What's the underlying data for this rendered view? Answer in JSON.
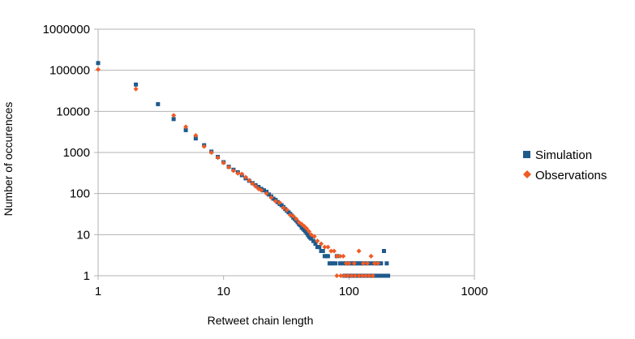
{
  "chart_data": {
    "type": "scatter",
    "xlabel": "Retweet chain length",
    "ylabel": "Number of occurences",
    "xscale": "log",
    "yscale": "log",
    "xlim": [
      1,
      1000
    ],
    "ylim": [
      1,
      1000000
    ],
    "x_ticks": [
      "1",
      "10",
      "100",
      "1000"
    ],
    "y_ticks": [
      "1",
      "10",
      "100",
      "1000",
      "10000",
      "100000",
      "1000000"
    ],
    "grid": "horizontal major",
    "legend_position": "right",
    "series": [
      {
        "name": "Simulation",
        "marker": "square",
        "color": "#1f5a8c",
        "points": [
          [
            1,
            150000
          ],
          [
            2,
            45000
          ],
          [
            3,
            15000
          ],
          [
            4,
            6500
          ],
          [
            5,
            3500
          ],
          [
            6,
            2200
          ],
          [
            7,
            1500
          ],
          [
            8,
            1050
          ],
          [
            9,
            780
          ],
          [
            10,
            580
          ],
          [
            11,
            450
          ],
          [
            12,
            380
          ],
          [
            13,
            330
          ],
          [
            14,
            280
          ],
          [
            15,
            235
          ],
          [
            16,
            205
          ],
          [
            17,
            180
          ],
          [
            18,
            160
          ],
          [
            19,
            145
          ],
          [
            20,
            130
          ],
          [
            21,
            120
          ],
          [
            22,
            110
          ],
          [
            23,
            95
          ],
          [
            24,
            85
          ],
          [
            25,
            75
          ],
          [
            26,
            70
          ],
          [
            27,
            62
          ],
          [
            28,
            56
          ],
          [
            29,
            52
          ],
          [
            30,
            47
          ],
          [
            31,
            42
          ],
          [
            32,
            38
          ],
          [
            33,
            35
          ],
          [
            34,
            32
          ],
          [
            35,
            29
          ],
          [
            36,
            26
          ],
          [
            37,
            24
          ],
          [
            38,
            22
          ],
          [
            39,
            20
          ],
          [
            40,
            18
          ],
          [
            41,
            17
          ],
          [
            42,
            15
          ],
          [
            43,
            14
          ],
          [
            44,
            13
          ],
          [
            45,
            12
          ],
          [
            46,
            11
          ],
          [
            47,
            10
          ],
          [
            48,
            9
          ],
          [
            49,
            8.5
          ],
          [
            50,
            8
          ],
          [
            52,
            7
          ],
          [
            54,
            6
          ],
          [
            56,
            5
          ],
          [
            58,
            5
          ],
          [
            60,
            4
          ],
          [
            62,
            4
          ],
          [
            64,
            3
          ],
          [
            66,
            3
          ],
          [
            68,
            3
          ],
          [
            70,
            2
          ],
          [
            72,
            2
          ],
          [
            75,
            2
          ],
          [
            78,
            2
          ],
          [
            80,
            3
          ],
          [
            85,
            2
          ],
          [
            90,
            2
          ],
          [
            95,
            2
          ],
          [
            100,
            2
          ],
          [
            105,
            2
          ],
          [
            110,
            2
          ],
          [
            115,
            2
          ],
          [
            120,
            2
          ],
          [
            125,
            2
          ],
          [
            130,
            2
          ],
          [
            140,
            2
          ],
          [
            150,
            2
          ],
          [
            160,
            2
          ],
          [
            170,
            2
          ],
          [
            180,
            2
          ],
          [
            190,
            4
          ],
          [
            200,
            2
          ],
          [
            92,
            1
          ],
          [
            96,
            1
          ],
          [
            100,
            1
          ],
          [
            104,
            1
          ],
          [
            108,
            1
          ],
          [
            112,
            1
          ],
          [
            116,
            1
          ],
          [
            120,
            1
          ],
          [
            124,
            1
          ],
          [
            128,
            1
          ],
          [
            132,
            1
          ],
          [
            136,
            1
          ],
          [
            140,
            1
          ],
          [
            145,
            1
          ],
          [
            150,
            1
          ],
          [
            155,
            1
          ],
          [
            160,
            1
          ],
          [
            165,
            1
          ],
          [
            170,
            1
          ],
          [
            175,
            1
          ],
          [
            180,
            1
          ],
          [
            185,
            1
          ],
          [
            190,
            1
          ],
          [
            195,
            1
          ],
          [
            200,
            1
          ],
          [
            205,
            1
          ]
        ]
      },
      {
        "name": "Observations",
        "marker": "diamond",
        "color": "#f05a24",
        "points": [
          [
            1,
            105000
          ],
          [
            2,
            35000
          ],
          [
            4,
            8000
          ],
          [
            5,
            4200
          ],
          [
            6,
            2600
          ],
          [
            7,
            1400
          ],
          [
            8,
            1000
          ],
          [
            9,
            750
          ],
          [
            10,
            560
          ],
          [
            11,
            440
          ],
          [
            12,
            360
          ],
          [
            13,
            310
          ],
          [
            14,
            300
          ],
          [
            15,
            250
          ],
          [
            16,
            210
          ],
          [
            17,
            175
          ],
          [
            18,
            150
          ],
          [
            19,
            130
          ],
          [
            20,
            120
          ],
          [
            22,
            100
          ],
          [
            24,
            80
          ],
          [
            26,
            65
          ],
          [
            28,
            60
          ],
          [
            30,
            45
          ],
          [
            32,
            40
          ],
          [
            34,
            30
          ],
          [
            36,
            28
          ],
          [
            38,
            24
          ],
          [
            40,
            20
          ],
          [
            42,
            18
          ],
          [
            44,
            16
          ],
          [
            46,
            14
          ],
          [
            48,
            12
          ],
          [
            50,
            10
          ],
          [
            53,
            9
          ],
          [
            56,
            7
          ],
          [
            60,
            6
          ],
          [
            64,
            5
          ],
          [
            68,
            5
          ],
          [
            72,
            4
          ],
          [
            76,
            4
          ],
          [
            80,
            3
          ],
          [
            85,
            3
          ],
          [
            90,
            3
          ],
          [
            95,
            2
          ],
          [
            100,
            2
          ],
          [
            110,
            2
          ],
          [
            120,
            4
          ],
          [
            130,
            2
          ],
          [
            140,
            2
          ],
          [
            150,
            3
          ],
          [
            160,
            2
          ],
          [
            170,
            2
          ],
          [
            80,
            1
          ],
          [
            86,
            1
          ],
          [
            92,
            1
          ],
          [
            98,
            1
          ],
          [
            105,
            1
          ],
          [
            112,
            1
          ],
          [
            120,
            1
          ],
          [
            128,
            1
          ],
          [
            136,
            1
          ],
          [
            145,
            1
          ],
          [
            155,
            1
          ]
        ]
      }
    ]
  }
}
